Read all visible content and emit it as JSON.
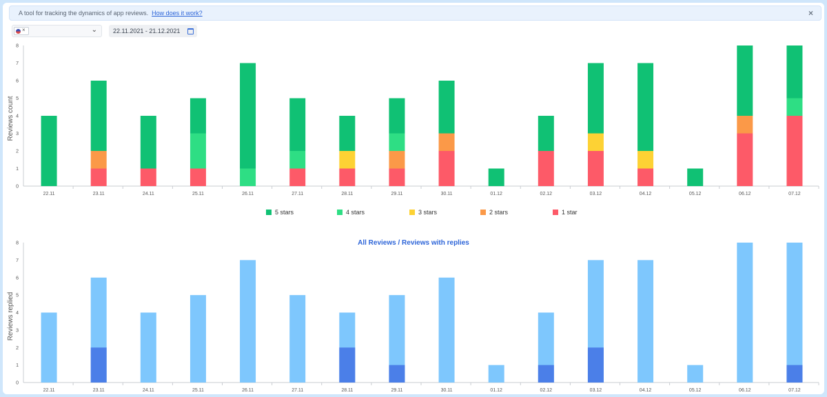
{
  "banner": {
    "text": "A tool for tracking the dynamics of app reviews.",
    "link": "How does it work?",
    "close": "×"
  },
  "filters": {
    "country_chip_remove": "×",
    "chevron": "⌄",
    "date_range": "22.11.2021 - 21.12.2021",
    "calendar_icon": "calendar-icon"
  },
  "colors": {
    "5 stars": "#10c174",
    "4 stars": "#2ede84",
    "3 stars": "#fdd234",
    "2 stars": "#fb9948",
    "1 star": "#fd5a68",
    "all_reviews": "#7ec7fd",
    "with_replies": "#4b7fe8"
  },
  "chart_data": [
    {
      "type": "bar",
      "stacked": true,
      "ylabel": "Reviews count",
      "ylim": [
        0,
        8
      ],
      "yticks": [
        "0",
        "1",
        "2",
        "3",
        "4",
        "5",
        "6",
        "7",
        "8"
      ],
      "categories": [
        "22.11",
        "23.11",
        "24.11",
        "25.11",
        "26.11",
        "27.11",
        "28.11",
        "29.11",
        "30.11",
        "01.12",
        "02.12",
        "03.12",
        "04.12",
        "05.12",
        "06.12",
        "07.12"
      ],
      "series": [
        {
          "name": "1 star",
          "values": [
            0,
            1,
            1,
            1,
            0,
            1,
            1,
            1,
            2,
            0,
            2,
            2,
            1,
            0,
            3,
            4
          ]
        },
        {
          "name": "2 stars",
          "values": [
            0,
            1,
            0,
            0,
            0,
            0,
            0,
            1,
            1,
            0,
            0,
            0,
            0,
            0,
            1,
            0
          ]
        },
        {
          "name": "3 stars",
          "values": [
            0,
            0,
            0,
            0,
            0,
            0,
            1,
            0,
            0,
            0,
            0,
            1,
            1,
            0,
            0,
            0
          ]
        },
        {
          "name": "4 stars",
          "values": [
            0,
            0,
            0,
            2,
            1,
            1,
            0,
            1,
            0,
            0,
            0,
            0,
            0,
            0,
            0,
            1
          ]
        },
        {
          "name": "5 stars",
          "values": [
            4,
            4,
            3,
            2,
            6,
            3,
            2,
            2,
            3,
            1,
            2,
            4,
            5,
            1,
            4,
            3
          ]
        }
      ],
      "legend": [
        "5 stars",
        "4 stars",
        "3 stars",
        "2 stars",
        "1 star"
      ],
      "legend_position": "bottom"
    },
    {
      "type": "bar",
      "overlay": true,
      "title": "All Reviews / Reviews with replies",
      "ylabel": "Reviews replied",
      "ylim": [
        0,
        8
      ],
      "yticks": [
        "0",
        "1",
        "2",
        "3",
        "4",
        "5",
        "6",
        "7",
        "8"
      ],
      "categories": [
        "22.11",
        "23.11",
        "24.11",
        "25.11",
        "26.11",
        "27.11",
        "28.11",
        "29.11",
        "30.11",
        "01.12",
        "02.12",
        "03.12",
        "04.12",
        "05.12",
        "06.12",
        "07.12"
      ],
      "series": [
        {
          "name": "All Reviews",
          "values": [
            4,
            6,
            4,
            5,
            7,
            5,
            4,
            5,
            6,
            1,
            4,
            7,
            7,
            1,
            8,
            8
          ]
        },
        {
          "name": "Reviews with replies",
          "values": [
            0,
            2,
            0,
            0,
            0,
            0,
            2,
            1,
            0,
            0,
            1,
            2,
            0,
            0,
            0,
            1
          ]
        }
      ]
    }
  ]
}
